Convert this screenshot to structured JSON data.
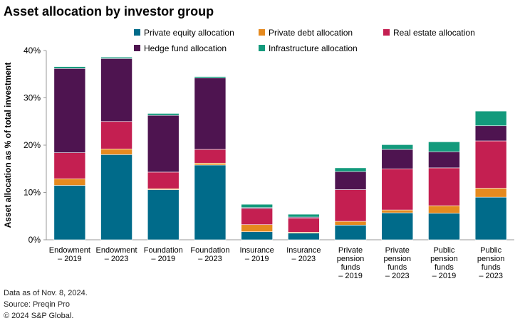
{
  "chart_data": {
    "type": "bar",
    "stacked": true,
    "title": "Asset allocation by investor group",
    "ylabel": "Asset allocation as % of total investment",
    "xlabel": "",
    "ylim": [
      0,
      40
    ],
    "yticks": [
      0,
      10,
      20,
      30,
      40
    ],
    "ytick_suffix": "%",
    "categories": [
      [
        "Endowment",
        "– 2019"
      ],
      [
        "Endowment",
        "– 2023"
      ],
      [
        "Foundation",
        "– 2019"
      ],
      [
        "Foundation",
        "– 2023"
      ],
      [
        "Insurance",
        "– 2019"
      ],
      [
        "Insurance",
        "– 2023"
      ],
      [
        "Private",
        "pension",
        "funds",
        "– 2019"
      ],
      [
        "Private",
        "pension",
        "funds",
        "– 2023"
      ],
      [
        "Public",
        "pension",
        "funds",
        "– 2019"
      ],
      [
        "Public",
        "pension",
        "funds",
        "– 2023"
      ]
    ],
    "series": [
      {
        "name": "Private equity allocation",
        "color": "#006b8a",
        "values": [
          11.5,
          18.0,
          10.6,
          15.8,
          1.7,
          1.4,
          3.1,
          5.7,
          5.6,
          9.0
        ]
      },
      {
        "name": "Private debt allocation",
        "color": "#e58a1f",
        "values": [
          1.4,
          1.2,
          0.2,
          0.4,
          1.5,
          0.2,
          0.8,
          0.6,
          1.6,
          1.9
        ]
      },
      {
        "name": "Real estate allocation",
        "color": "#c41f51",
        "values": [
          5.5,
          5.8,
          3.5,
          2.9,
          3.4,
          3.0,
          6.7,
          8.7,
          8.0,
          10.0
        ]
      },
      {
        "name": "Hedge fund allocation",
        "color": "#4e1450",
        "values": [
          17.8,
          13.3,
          12.0,
          15.1,
          0.2,
          0.2,
          3.8,
          4.1,
          3.4,
          3.2
        ]
      },
      {
        "name": "Infrastructure allocation",
        "color": "#139a7c",
        "values": [
          0.4,
          0.3,
          0.4,
          0.3,
          0.7,
          0.6,
          0.8,
          1.0,
          2.1,
          3.1
        ]
      }
    ],
    "legend_position": "top"
  },
  "footnotes": {
    "line1": "Data as of Nov. 8, 2024.",
    "line2": "Source: Preqin Pro",
    "line3": "© 2024 S&P Global."
  }
}
